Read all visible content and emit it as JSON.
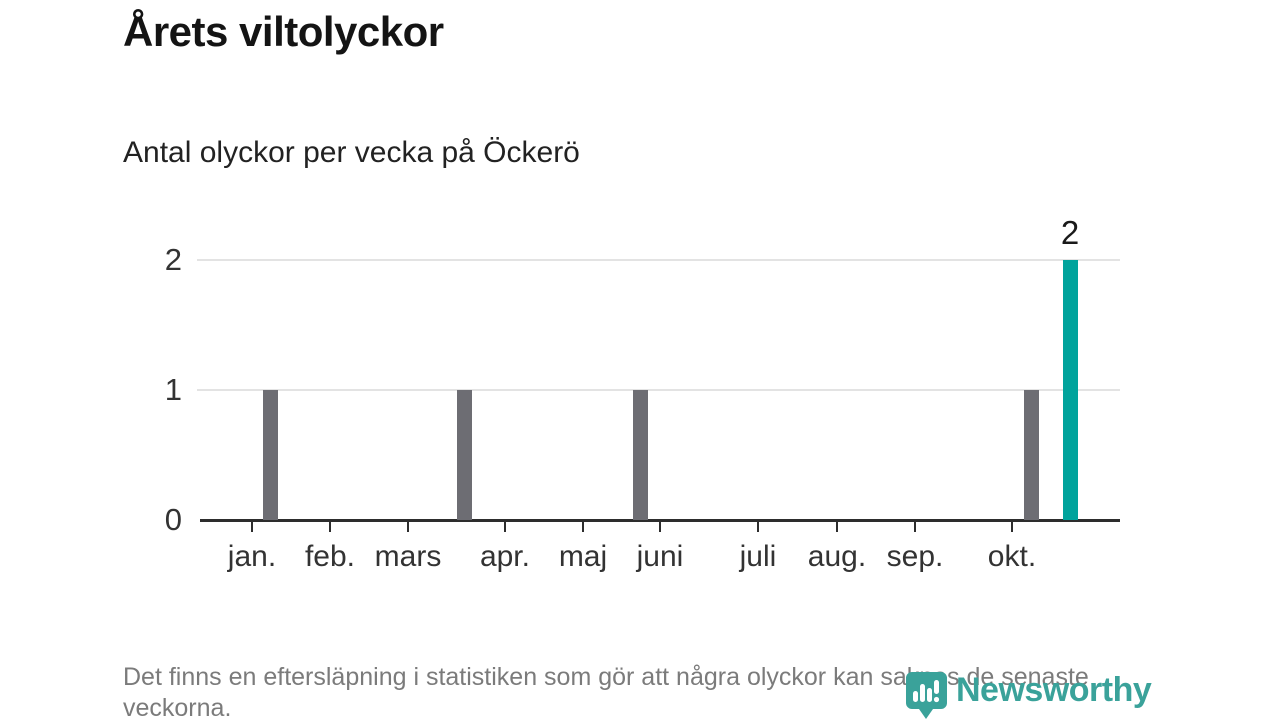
{
  "header": {
    "title": "Årets viltolyckor",
    "subtitle": "Antal olyckor per vecka på Öckerö"
  },
  "chart_data": {
    "type": "bar",
    "title": "Årets viltolyckor",
    "subtitle": "Antal olyckor per vecka på Öckerö",
    "xlabel": "",
    "ylabel": "",
    "ylim": [
      0,
      2
    ],
    "yticks": [
      0,
      1,
      2
    ],
    "grid": "horizontal",
    "x_unit": "vecka",
    "x_tick_labels": [
      "jan.",
      "feb.",
      "mars",
      "apr.",
      "maj",
      "juni",
      "juli",
      "aug.",
      "sep.",
      "okt."
    ],
    "x_ticks": [
      {
        "label": "jan.",
        "pos": 0.0565
      },
      {
        "label": "feb.",
        "pos": 0.1413
      },
      {
        "label": "mars",
        "pos": 0.2261
      },
      {
        "label": "apr.",
        "pos": 0.3315
      },
      {
        "label": "maj",
        "pos": 0.4163
      },
      {
        "label": "juni",
        "pos": 0.5
      },
      {
        "label": "juli",
        "pos": 0.6065
      },
      {
        "label": "aug.",
        "pos": 0.6924
      },
      {
        "label": "sep.",
        "pos": 0.7772
      },
      {
        "label": "okt.",
        "pos": 0.8826
      }
    ],
    "bars": [
      {
        "week": 4,
        "pos": 0.0766,
        "value": 1,
        "role": "default",
        "data_label": ""
      },
      {
        "week": 13,
        "pos": 0.288,
        "value": 1,
        "role": "default",
        "data_label": ""
      },
      {
        "week": 22,
        "pos": 0.4793,
        "value": 1,
        "role": "default",
        "data_label": ""
      },
      {
        "week": 42,
        "pos": 0.9033,
        "value": 1,
        "role": "default",
        "data_label": ""
      },
      {
        "week": 44,
        "pos": 0.9457,
        "value": 2,
        "role": "highlight",
        "data_label": "2"
      }
    ],
    "colors": {
      "default": "#6d6d73",
      "highlight": "#00a39c",
      "gridline": "#e3e3e3",
      "axis": "#2d2d2d"
    }
  },
  "footer": {
    "note": "Det finns en eftersläpning i statistiken som gör att några olyckor kan saknas de senaste veckorna.",
    "brand": "Newsworthy",
    "brand_color": "#3aa29a"
  }
}
